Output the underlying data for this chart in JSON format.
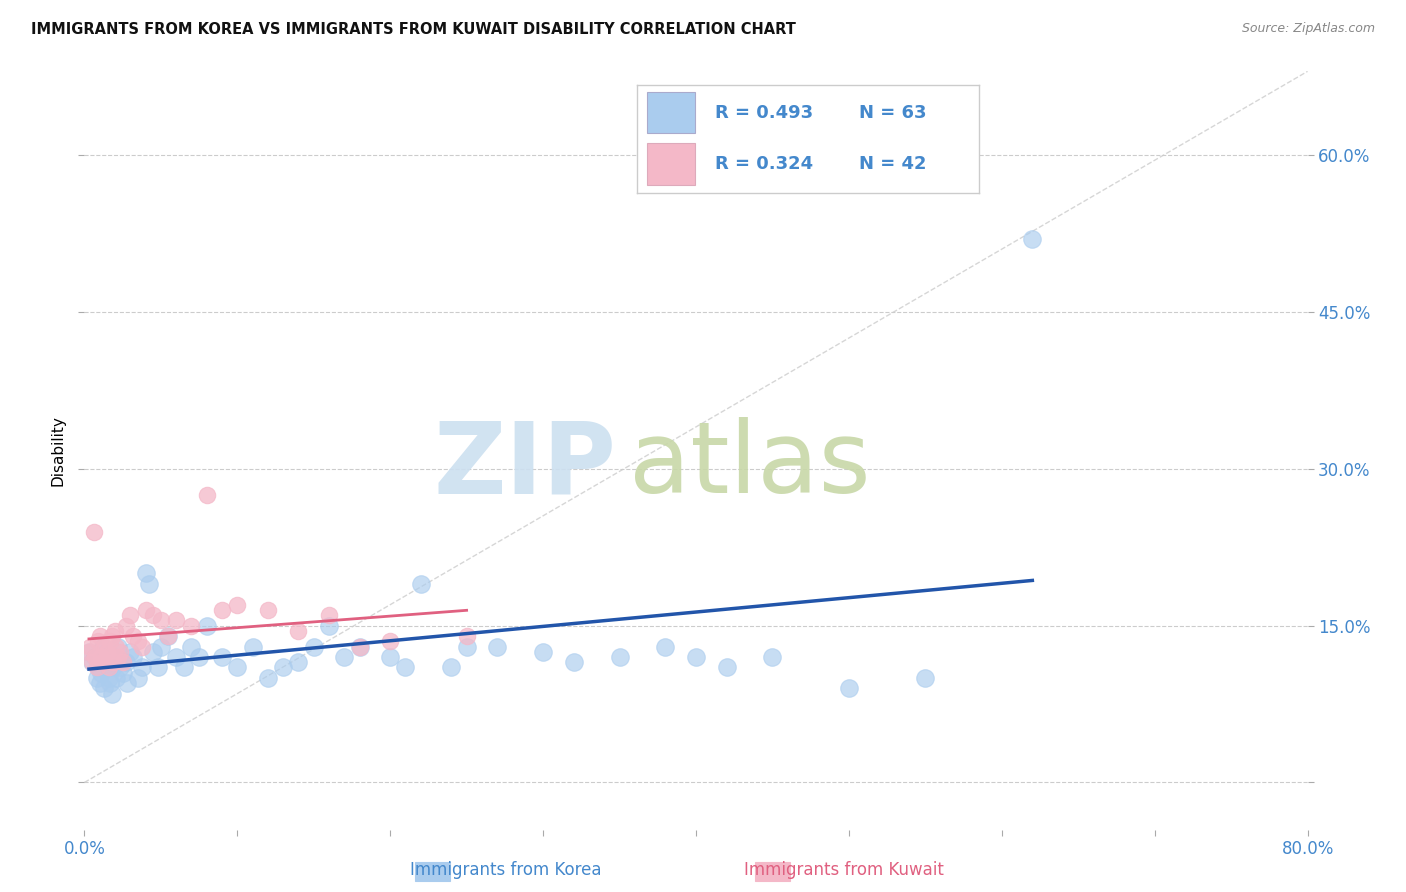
{
  "title": "IMMIGRANTS FROM KOREA VS IMMIGRANTS FROM KUWAIT DISABILITY CORRELATION CHART",
  "source": "Source: ZipAtlas.com",
  "ylabel": "Disability",
  "xlim": [
    0.0,
    0.8
  ],
  "ylim": [
    -0.045,
    0.68
  ],
  "xticks": [
    0.0,
    0.1,
    0.2,
    0.3,
    0.4,
    0.5,
    0.6,
    0.7,
    0.8
  ],
  "xticklabels": [
    "0.0%",
    "",
    "",
    "",
    "",
    "",
    "",
    "",
    "80.0%"
  ],
  "yticks": [
    0.0,
    0.15,
    0.3,
    0.45,
    0.6
  ],
  "yticklabels": [
    "",
    "15.0%",
    "30.0%",
    "45.0%",
    "60.0%"
  ],
  "grid_color": "#cccccc",
  "korea_color": "#aaccee",
  "kuwait_color": "#f4b8c8",
  "korea_line_color": "#2255aa",
  "kuwait_line_color": "#e06080",
  "diag_color": "#cccccc",
  "tick_color": "#4488cc",
  "legend_korea_R": "0.493",
  "legend_korea_N": "63",
  "legend_kuwait_R": "0.324",
  "legend_kuwait_N": "42",
  "legend_text_color": "#4488cc",
  "legend_border_color": "#cccccc",
  "watermark_zip_color": "#ddeeff",
  "watermark_atlas_color": "#ccddb8",
  "korea_scatter_x": [
    0.003,
    0.005,
    0.007,
    0.008,
    0.009,
    0.01,
    0.011,
    0.012,
    0.013,
    0.014,
    0.015,
    0.016,
    0.017,
    0.018,
    0.019,
    0.02,
    0.021,
    0.022,
    0.023,
    0.025,
    0.027,
    0.028,
    0.03,
    0.032,
    0.035,
    0.038,
    0.04,
    0.042,
    0.045,
    0.048,
    0.05,
    0.055,
    0.06,
    0.065,
    0.07,
    0.075,
    0.08,
    0.09,
    0.1,
    0.11,
    0.12,
    0.13,
    0.14,
    0.15,
    0.16,
    0.17,
    0.18,
    0.2,
    0.21,
    0.22,
    0.24,
    0.25,
    0.27,
    0.3,
    0.32,
    0.35,
    0.38,
    0.4,
    0.42,
    0.45,
    0.5,
    0.55,
    0.62
  ],
  "korea_scatter_y": [
    0.125,
    0.115,
    0.12,
    0.1,
    0.11,
    0.095,
    0.105,
    0.13,
    0.09,
    0.115,
    0.12,
    0.1,
    0.095,
    0.085,
    0.11,
    0.12,
    0.1,
    0.13,
    0.11,
    0.105,
    0.115,
    0.095,
    0.125,
    0.12,
    0.1,
    0.11,
    0.2,
    0.19,
    0.125,
    0.11,
    0.13,
    0.14,
    0.12,
    0.11,
    0.13,
    0.12,
    0.15,
    0.12,
    0.11,
    0.13,
    0.1,
    0.11,
    0.115,
    0.13,
    0.15,
    0.12,
    0.13,
    0.12,
    0.11,
    0.19,
    0.11,
    0.13,
    0.13,
    0.125,
    0.115,
    0.12,
    0.13,
    0.12,
    0.11,
    0.12,
    0.09,
    0.1,
    0.52
  ],
  "kuwait_scatter_x": [
    0.003,
    0.004,
    0.005,
    0.006,
    0.007,
    0.008,
    0.009,
    0.01,
    0.011,
    0.012,
    0.013,
    0.014,
    0.015,
    0.016,
    0.017,
    0.018,
    0.019,
    0.02,
    0.021,
    0.022,
    0.023,
    0.025,
    0.027,
    0.03,
    0.032,
    0.035,
    0.038,
    0.04,
    0.045,
    0.05,
    0.055,
    0.06,
    0.07,
    0.08,
    0.09,
    0.1,
    0.12,
    0.14,
    0.16,
    0.18,
    0.2,
    0.25
  ],
  "kuwait_scatter_y": [
    0.125,
    0.13,
    0.115,
    0.24,
    0.12,
    0.11,
    0.135,
    0.14,
    0.12,
    0.115,
    0.13,
    0.12,
    0.125,
    0.11,
    0.135,
    0.14,
    0.115,
    0.145,
    0.13,
    0.12,
    0.125,
    0.115,
    0.15,
    0.16,
    0.14,
    0.135,
    0.13,
    0.165,
    0.16,
    0.155,
    0.14,
    0.155,
    0.15,
    0.275,
    0.165,
    0.17,
    0.165,
    0.145,
    0.16,
    0.13,
    0.135,
    0.14
  ]
}
